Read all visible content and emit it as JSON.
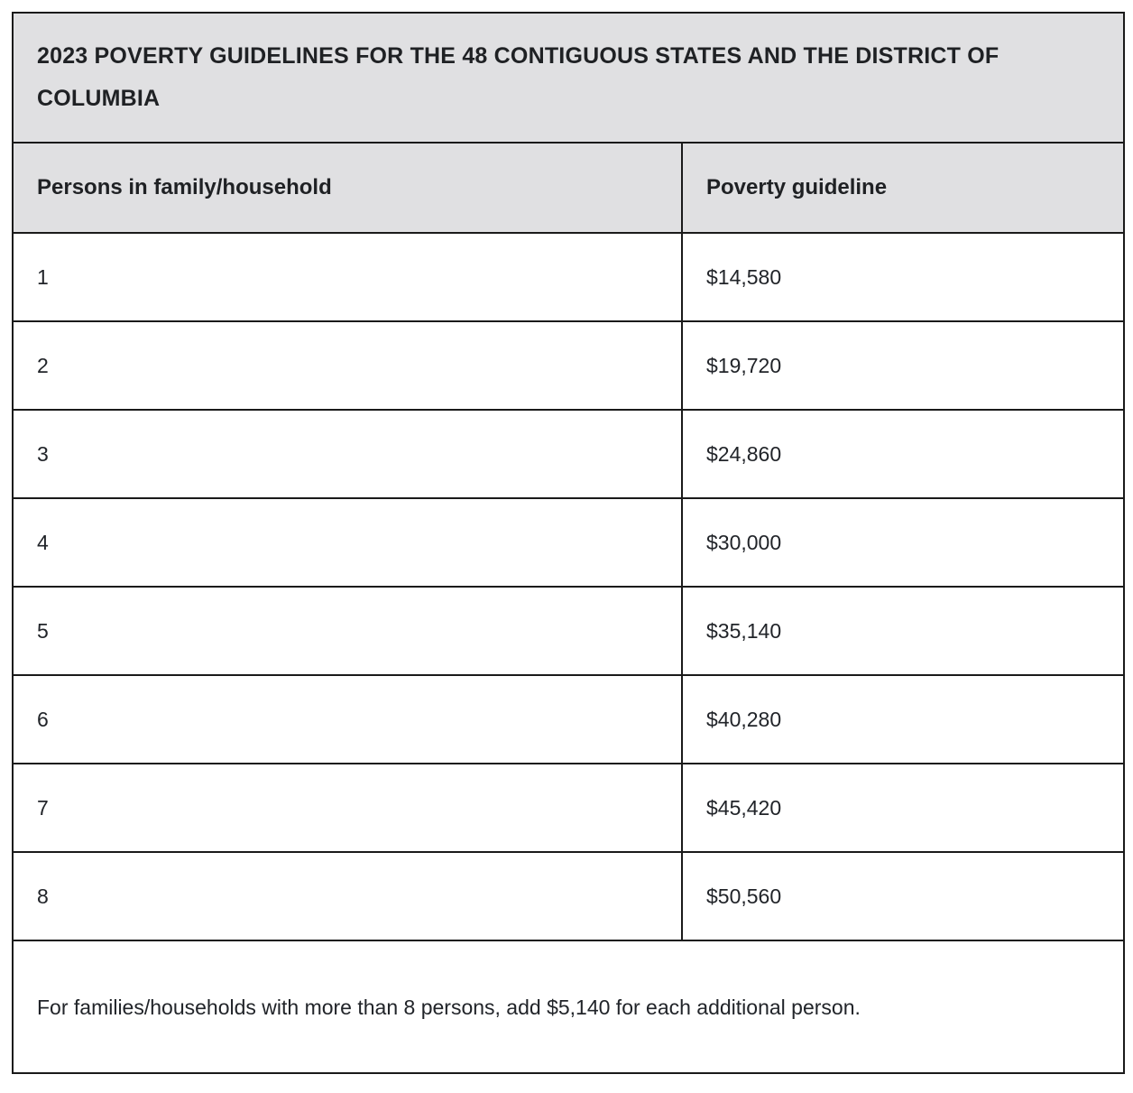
{
  "table": {
    "title": "2023 POVERTY GUIDELINES FOR THE 48 CONTIGUOUS STATES AND THE DISTRICT OF COLUMBIA",
    "columns": {
      "persons": "Persons in family/household",
      "guideline": "Poverty guideline"
    },
    "rows": [
      {
        "persons": "1",
        "guideline": "$14,580"
      },
      {
        "persons": "2",
        "guideline": "$19,720"
      },
      {
        "persons": "3",
        "guideline": "$24,860"
      },
      {
        "persons": "4",
        "guideline": "$30,000"
      },
      {
        "persons": "5",
        "guideline": "$35,140"
      },
      {
        "persons": "6",
        "guideline": "$40,280"
      },
      {
        "persons": "7",
        "guideline": "$45,420"
      },
      {
        "persons": "8",
        "guideline": "$50,560"
      }
    ],
    "footnote": "For families/households with more than 8 persons, add $5,140 for each additional person.",
    "colors": {
      "header_background": "#e0e0e2",
      "border": "#1a1a1a",
      "text": "#212429",
      "row_background": "#ffffff"
    }
  }
}
